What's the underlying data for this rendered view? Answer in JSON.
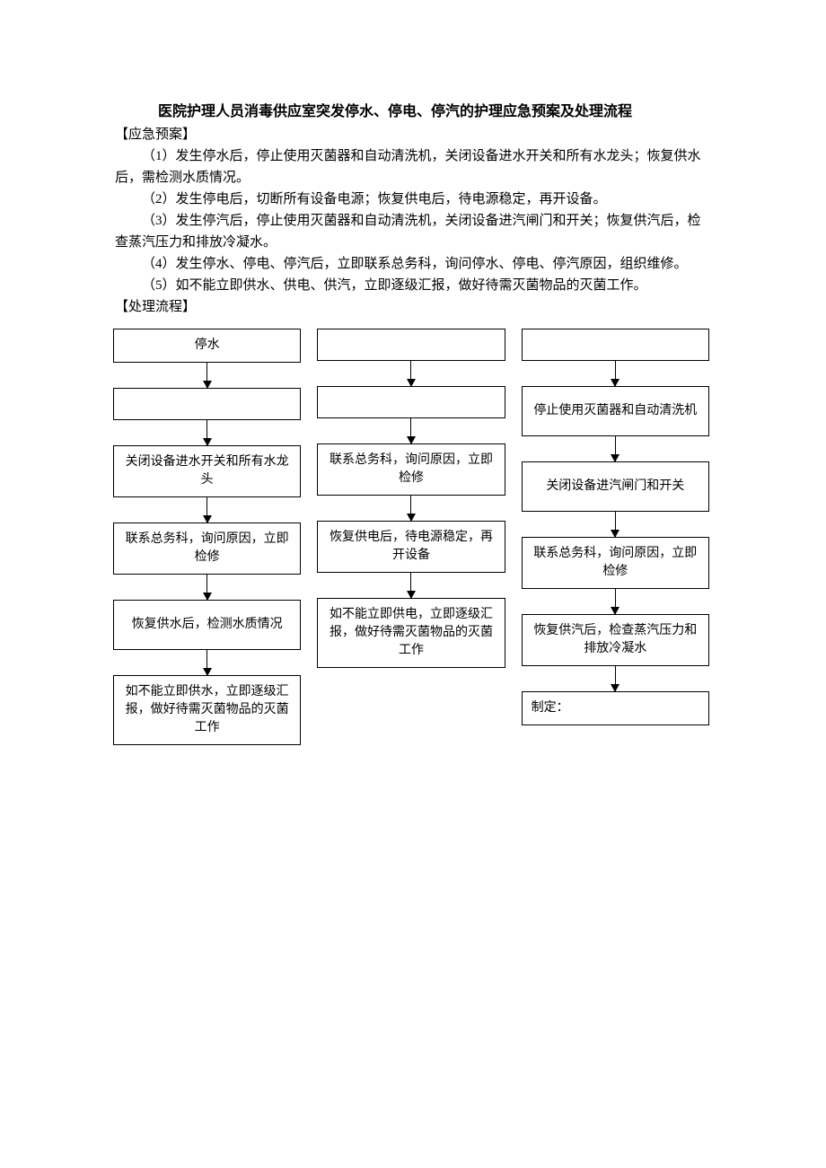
{
  "doc": {
    "title": "医院护理人员消毒供应室突发停水、停电、停汽的护理应急预案及处理流程",
    "label_plan": "【应急预案】",
    "p1": "（1）发生停水后，停止使用灭菌器和自动清洗机，关闭设备进水开关和所有水龙头；恢复供水后，需检测水质情况。",
    "p2": "（2）发生停电后，切断所有设备电源；恢复供电后，待电源稳定，再开设备。",
    "p3": "（3）发生停汽后，停止使用灭菌器和自动清洗机，关闭设备进汽闸门和开关；恢复供汽后，检查蒸汽压力和排放冷凝水。",
    "p4": "（4）发生停水、停电、停汽后，立即联系总务科，询问停水、停电、停汽原因，组织维修。",
    "p5": "（5）如不能立即供水、供电、供汽，立即逐级汇报，做好待需灭菌物品的灭菌工作。",
    "label_flow": "【处理流程】"
  },
  "flow": {
    "type": "flowchart",
    "node_border_color": "#000000",
    "background_color": "#ffffff",
    "node_fontsize": 14,
    "columns": [
      {
        "nodes": [
          {
            "text": "停水",
            "h": 36
          },
          {
            "text": "",
            "h": 36
          },
          {
            "text": "关闭设备进水开关和所有水龙头",
            "h": 56
          },
          {
            "text": "联系总务科，询问原因，立即检修",
            "h": 56
          },
          {
            "text": "恢复供水后，检测水质情况",
            "h": 56
          },
          {
            "text": "如不能立即供水，立即逐级汇报，做好待需灭菌物品的灭菌工作",
            "h": 76
          }
        ],
        "arrows": [
          28,
          28,
          28,
          28,
          28
        ]
      },
      {
        "nodes": [
          {
            "text": "",
            "h": 36
          },
          {
            "text": "",
            "h": 36
          },
          {
            "text": "联系总务科，询问原因，立即检修",
            "h": 56
          },
          {
            "text": "恢复供电后，待电源稳定，再开设备",
            "h": 56
          },
          {
            "text": "如不能立即供电，立即逐级汇报，做好待需灭菌物品的灭菌工作",
            "h": 76
          }
        ],
        "arrows": [
          28,
          28,
          28,
          28
        ]
      },
      {
        "nodes": [
          {
            "text": "",
            "h": 36
          },
          {
            "text": "停止使用灭菌器和自动清洗机",
            "h": 56
          },
          {
            "text": "关闭设备进汽闸门和开关",
            "h": 56
          },
          {
            "text": "联系总务科，询问原因，立即检修",
            "h": 56
          },
          {
            "text": "恢复供汽后，检查蒸汽压力和排放冷凝水",
            "h": 56
          },
          {
            "text": "制定：",
            "h": 36,
            "align": "left"
          }
        ],
        "arrows": [
          28,
          28,
          28,
          28,
          28
        ]
      }
    ]
  }
}
